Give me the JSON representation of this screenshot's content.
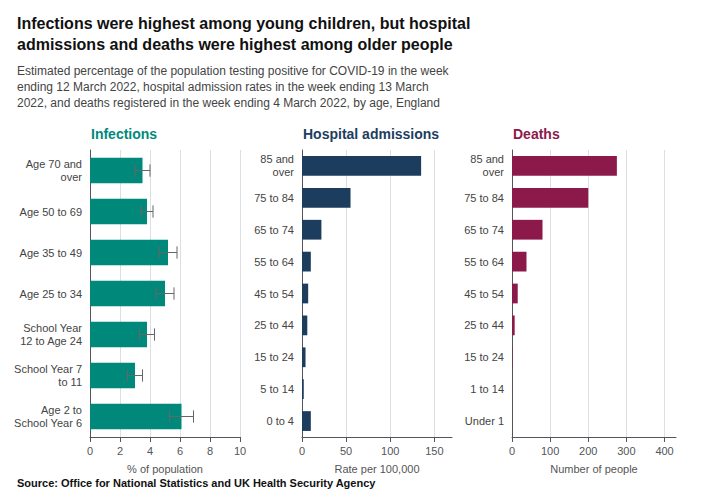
{
  "title": "Infections were highest among young children, but hospital\nadmissions and deaths were highest among older people",
  "subtitle": "Estimated percentage of the population testing positive for COVID-19 in the week\nending 12 March 2022, hospital admission rates in the week ending 13 March\n2022, and deaths registered in the week ending 4 March 2022, by age, England",
  "source": "Source: Office for National Statistics and UK Health Security Agency",
  "chart_data": [
    {
      "type": "bar",
      "orientation": "horizontal",
      "title": "Infections",
      "categories": [
        "Age 70 and\nover",
        "Age 50 to 69",
        "Age 35 to 49",
        "Age 25 to 34",
        "School Year\n12 to Age 24",
        "School Year 7\nto 11",
        "Age 2 to\nSchool Year 6"
      ],
      "values": [
        3.5,
        3.8,
        5.2,
        5.0,
        3.8,
        3.0,
        6.1
      ],
      "errors": [
        0.5,
        0.4,
        0.6,
        0.6,
        0.5,
        0.5,
        0.8
      ],
      "color": "#00897B",
      "xlabel": "% of population",
      "xlim": [
        0,
        10
      ],
      "xticks": [
        0,
        2,
        4,
        6,
        8,
        10
      ],
      "grid": true
    },
    {
      "type": "bar",
      "orientation": "horizontal",
      "title": "Hospital admissions",
      "categories": [
        "85 and\nover",
        "75 to 84",
        "65 to 74",
        "55 to 64",
        "45 to 54",
        "25 to 44",
        "15 to 24",
        "5 to 14",
        "0 to 4"
      ],
      "values": [
        135,
        55,
        22,
        10,
        7,
        6,
        4,
        2,
        10
      ],
      "color": "#1d3d5e",
      "xlabel": "Rate per 100,000",
      "xlim": [
        0,
        170
      ],
      "xticks": [
        0,
        50,
        100,
        150
      ],
      "grid": true
    },
    {
      "type": "bar",
      "orientation": "horizontal",
      "title": "Deaths",
      "categories": [
        "85 and\nover",
        "75 to 84",
        "65 to 74",
        "55 to 64",
        "45 to 54",
        "25 to 44",
        "15 to 24",
        "1 to 14",
        "Under 1"
      ],
      "values": [
        275,
        200,
        80,
        38,
        15,
        7,
        1,
        0,
        0
      ],
      "color": "#8B1A4A",
      "xlabel": "Number of people",
      "xlim": [
        0,
        430
      ],
      "xticks": [
        0,
        100,
        200,
        300,
        400
      ],
      "grid": true
    }
  ]
}
